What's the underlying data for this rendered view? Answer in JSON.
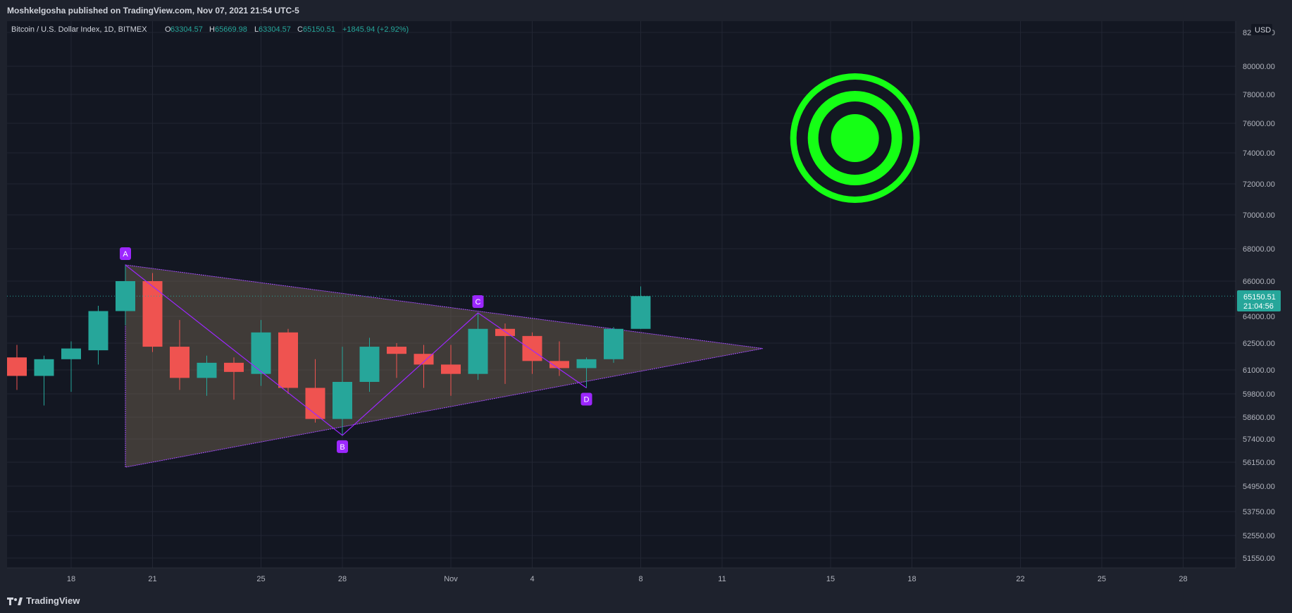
{
  "header": {
    "published_by": "Moshkelgosha published on TradingView.com, Nov 07, 2021 21:54 UTC-5"
  },
  "legend": {
    "symbol": "Bitcoin / U.S. Dollar Index, 1D, BITMEX",
    "o_label": "O",
    "o_value": "63304.57",
    "h_label": "H",
    "h_value": "65669.98",
    "l_label": "L",
    "l_value": "63304.57",
    "c_label": "C",
    "c_value": "65150.51",
    "change": "+1845.94 (+2.92%)"
  },
  "footer": {
    "brand": "TradingView"
  },
  "colors": {
    "up": "#26a69a",
    "down": "#ef5350",
    "pattern": "#9c27ff",
    "target": "#15ff15"
  },
  "chart_data": {
    "type": "candlestick",
    "currency": "USD",
    "last_price": "65150.51",
    "countdown": "21:04:56",
    "y_ticks": [
      {
        "value": 82000,
        "label": "82000.00"
      },
      {
        "value": 80000,
        "label": "80000.00"
      },
      {
        "value": 78000,
        "label": "78000.00"
      },
      {
        "value": 76000,
        "label": "76000.00"
      },
      {
        "value": 74000,
        "label": "74000.00"
      },
      {
        "value": 72000,
        "label": "72000.00"
      },
      {
        "value": 70000,
        "label": "70000.00"
      },
      {
        "value": 68000,
        "label": "68000.00"
      },
      {
        "value": 66000,
        "label": "66000.00"
      },
      {
        "value": 64000,
        "label": "64000.00"
      },
      {
        "value": 62500,
        "label": "62500.00"
      },
      {
        "value": 61000,
        "label": "61000.00"
      },
      {
        "value": 59800,
        "label": "59800.00"
      },
      {
        "value": 58600,
        "label": "58600.00"
      },
      {
        "value": 57400,
        "label": "57400.00"
      },
      {
        "value": 56150,
        "label": "56150.00"
      },
      {
        "value": 54950,
        "label": "54950.00"
      },
      {
        "value": 53750,
        "label": "53750.00"
      },
      {
        "value": 52550,
        "label": "52550.00"
      },
      {
        "value": 51550,
        "label": "51550.00"
      }
    ],
    "x_ticks": [
      {
        "day": 18,
        "label": "18"
      },
      {
        "day": 21,
        "label": "21"
      },
      {
        "day": 25,
        "label": "25"
      },
      {
        "day": 28,
        "label": "28"
      },
      {
        "day": 32,
        "label": "Nov"
      },
      {
        "day": 35,
        "label": "4"
      },
      {
        "day": 39,
        "label": "8"
      },
      {
        "day": 42,
        "label": "11"
      },
      {
        "day": 46,
        "label": "15"
      },
      {
        "day": 49,
        "label": "18"
      },
      {
        "day": 53,
        "label": "22"
      },
      {
        "day": 56,
        "label": "25"
      },
      {
        "day": 59,
        "label": "28"
      }
    ],
    "candles": [
      {
        "day": 16,
        "o": 61700,
        "h": 62400,
        "l": 60000,
        "c": 60700
      },
      {
        "day": 17,
        "o": 60700,
        "h": 61800,
        "l": 59200,
        "c": 61600
      },
      {
        "day": 18,
        "o": 61600,
        "h": 62600,
        "l": 59900,
        "c": 62200
      },
      {
        "day": 19,
        "o": 62100,
        "h": 64600,
        "l": 61300,
        "c": 64300
      },
      {
        "day": 20,
        "o": 64300,
        "h": 67000,
        "l": 63500,
        "c": 66000
      },
      {
        "day": 21,
        "o": 66000,
        "h": 66500,
        "l": 62000,
        "c": 62300
      },
      {
        "day": 22,
        "o": 62300,
        "h": 63800,
        "l": 60000,
        "c": 60600
      },
      {
        "day": 23,
        "o": 60600,
        "h": 61800,
        "l": 59700,
        "c": 61400
      },
      {
        "day": 24,
        "o": 61400,
        "h": 61700,
        "l": 59500,
        "c": 60900
      },
      {
        "day": 25,
        "o": 60800,
        "h": 63800,
        "l": 60200,
        "c": 63100
      },
      {
        "day": 26,
        "o": 63100,
        "h": 63300,
        "l": 59800,
        "c": 60100
      },
      {
        "day": 27,
        "o": 60100,
        "h": 61600,
        "l": 58300,
        "c": 58500
      },
      {
        "day": 28,
        "o": 58500,
        "h": 62300,
        "l": 57600,
        "c": 60400
      },
      {
        "day": 29,
        "o": 60400,
        "h": 62800,
        "l": 59900,
        "c": 62300
      },
      {
        "day": 30,
        "o": 62300,
        "h": 62500,
        "l": 60600,
        "c": 61900
      },
      {
        "day": 31,
        "o": 61900,
        "h": 62400,
        "l": 60100,
        "c": 61300
      },
      {
        "day": 32,
        "o": 61300,
        "h": 62400,
        "l": 59700,
        "c": 60800
      },
      {
        "day": 33,
        "o": 60800,
        "h": 64200,
        "l": 60500,
        "c": 63300
      },
      {
        "day": 34,
        "o": 63300,
        "h": 63600,
        "l": 60300,
        "c": 62900
      },
      {
        "day": 35,
        "o": 62900,
        "h": 63100,
        "l": 60800,
        "c": 61500
      },
      {
        "day": 36,
        "o": 61500,
        "h": 62600,
        "l": 60700,
        "c": 61100
      },
      {
        "day": 37,
        "o": 61100,
        "h": 61700,
        "l": 60100,
        "c": 61600
      },
      {
        "day": 38,
        "o": 61600,
        "h": 63400,
        "l": 61400,
        "c": 63300
      },
      {
        "day": 39,
        "o": 63300,
        "h": 65700,
        "l": 63300,
        "c": 65150
      }
    ],
    "pattern_points": [
      {
        "label": "A",
        "day": 20,
        "price": 67000
      },
      {
        "label": "B",
        "day": 28,
        "price": 57600
      },
      {
        "label": "C",
        "day": 33,
        "price": 64200
      },
      {
        "label": "D",
        "day": 37,
        "price": 60100
      }
    ],
    "triangle": [
      {
        "day": 20,
        "price": 67000
      },
      {
        "day": 20,
        "price": 55900
      },
      {
        "day": 43.5,
        "price": 62200
      }
    ],
    "target": {
      "day": 46.9,
      "price": 75000
    }
  }
}
